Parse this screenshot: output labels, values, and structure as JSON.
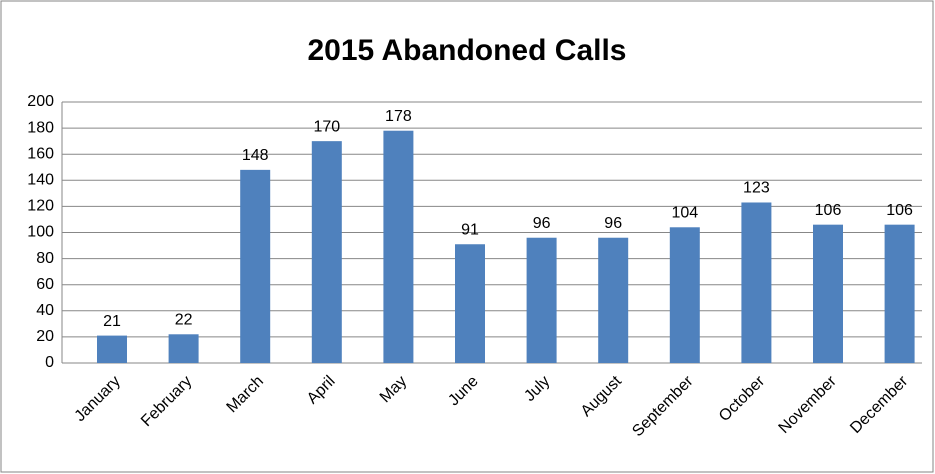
{
  "chart_data": {
    "type": "bar",
    "title": "2015 Abandoned Calls",
    "categories": [
      "January",
      "February",
      "March",
      "April",
      "May",
      "June",
      "July",
      "August",
      "September",
      "October",
      "November",
      "December"
    ],
    "values": [
      21,
      22,
      148,
      170,
      178,
      91,
      96,
      96,
      104,
      123,
      106,
      106
    ],
    "color": "#4f81bd",
    "ylim": [
      0,
      200
    ],
    "yticks": [
      0,
      20,
      40,
      60,
      80,
      100,
      120,
      140,
      160,
      180,
      200
    ],
    "grid": true
  }
}
